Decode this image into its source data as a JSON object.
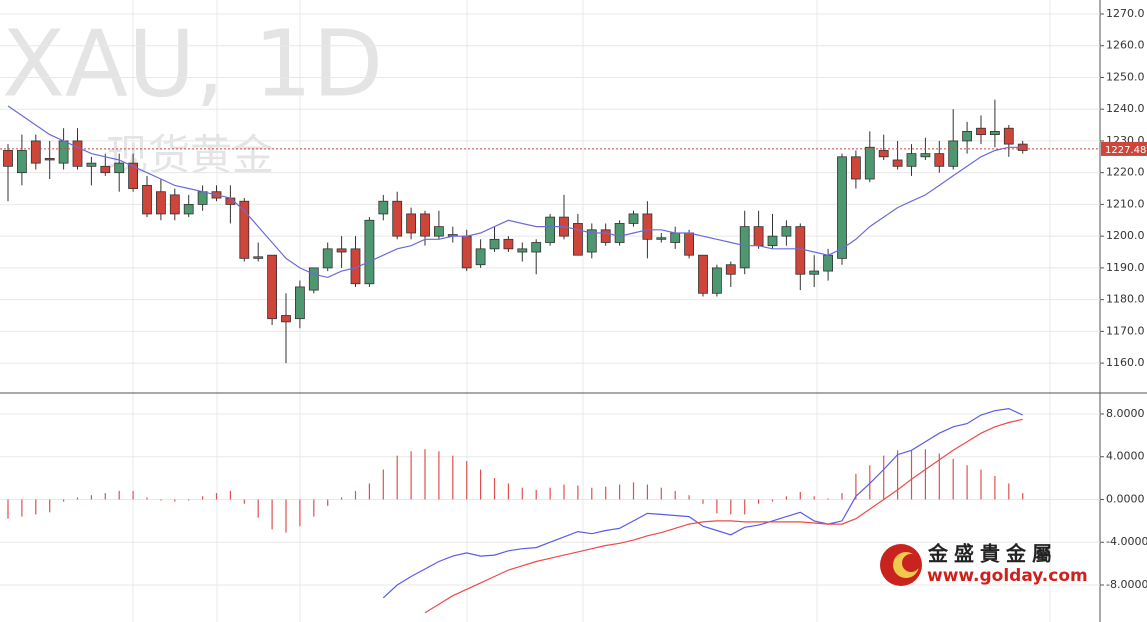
{
  "chart_data": [
    {
      "type": "candlestick",
      "title": "XAU, 1D",
      "subtitle": "现货黄金",
      "up_color": "#4d9870",
      "down_color": "#d0453a",
      "wick_color": "#333333",
      "open": [
        1227,
        1220,
        1230,
        1224.5,
        1223,
        1230,
        1222,
        1222,
        1220,
        1223,
        1216,
        1214,
        1213,
        1207,
        1210,
        1214,
        1212,
        1211,
        1193,
        1194,
        1175,
        1174,
        1183,
        1190,
        1196,
        1196,
        1185,
        1207,
        1211,
        1207,
        1207,
        1200,
        1200,
        1200,
        1191,
        1196,
        1199,
        1195,
        1195,
        1198,
        1206,
        1204,
        1195,
        1202,
        1198,
        1204,
        1207,
        1199,
        1198,
        1201,
        1194,
        1182,
        1191,
        1190,
        1203,
        1197,
        1200,
        1203,
        1188,
        1189,
        1193,
        1225,
        1218,
        1227,
        1224,
        1222,
        1225,
        1226,
        1222,
        1230,
        1234,
        1232,
        1234,
        1229
      ],
      "high": [
        1229,
        1232,
        1232,
        1230,
        1234,
        1234,
        1225,
        1226,
        1226,
        1226,
        1219,
        1218,
        1215,
        1213,
        1216,
        1216,
        1216,
        1212,
        1198,
        1194,
        1182,
        1186,
        1190,
        1198,
        1200,
        1200,
        1206,
        1213,
        1214,
        1209,
        1208,
        1208,
        1203,
        1202,
        1199,
        1203,
        1200,
        1198,
        1199,
        1207,
        1213,
        1207,
        1204,
        1204,
        1205,
        1208,
        1211,
        1201,
        1203,
        1202,
        1194,
        1191,
        1192,
        1208,
        1208,
        1207,
        1205,
        1204,
        1194,
        1196,
        1226,
        1227,
        1233,
        1232,
        1230,
        1229,
        1231,
        1230,
        1240,
        1236,
        1238,
        1243,
        1235,
        1230
      ],
      "low": [
        1211,
        1216,
        1221,
        1218,
        1221,
        1221,
        1216,
        1219,
        1214,
        1214,
        1206,
        1205,
        1205,
        1206,
        1208,
        1211,
        1204,
        1192,
        1192,
        1172,
        1160,
        1171,
        1182,
        1189,
        1190,
        1184,
        1184,
        1205,
        1199,
        1199,
        1197,
        1199,
        1198,
        1189,
        1190,
        1195,
        1195,
        1192,
        1188,
        1197,
        1199,
        1194,
        1193,
        1197,
        1197,
        1203,
        1193,
        1198,
        1196,
        1193,
        1181,
        1181,
        1184,
        1188,
        1196,
        1196,
        1197,
        1183,
        1184,
        1186,
        1191,
        1215,
        1217,
        1224,
        1221,
        1219,
        1224,
        1220,
        1221,
        1226,
        1229,
        1228,
        1225,
        1226
      ],
      "close": [
        1222,
        1227,
        1223,
        1224,
        1230,
        1222,
        1223,
        1220,
        1223,
        1215,
        1207,
        1207,
        1207,
        1210,
        1214,
        1212,
        1210,
        1193,
        1193.5,
        1174,
        1173,
        1184,
        1190,
        1196,
        1195,
        1185,
        1205,
        1211,
        1200,
        1201,
        1200,
        1203,
        1200.5,
        1190,
        1196,
        1199,
        1196,
        1196,
        1198,
        1206,
        1200,
        1194,
        1202,
        1198,
        1204,
        1207,
        1199,
        1199.5,
        1201,
        1194,
        1182,
        1190,
        1188,
        1203,
        1197,
        1200,
        1203,
        1188,
        1189,
        1194,
        1225,
        1218,
        1228,
        1225,
        1222,
        1226,
        1226,
        1222,
        1230,
        1233,
        1232,
        1233,
        1229,
        1227
      ],
      "ma": {
        "color": "#6b6bdb",
        "values": [
          1241,
          1238,
          1235,
          1232,
          1230,
          1228,
          1226,
          1225,
          1224,
          1222,
          1220,
          1218,
          1216,
          1215,
          1214,
          1213,
          1212,
          1208,
          1203,
          1198,
          1193,
          1190,
          1188,
          1187,
          1189,
          1190,
          1192,
          1194,
          1196,
          1197,
          1199,
          1199,
          1200,
          1200,
          1201,
          1203,
          1205,
          1204,
          1203,
          1203,
          1203,
          1202,
          1201,
          1201,
          1200,
          1201,
          1202,
          1202,
          1201,
          1201,
          1200,
          1199,
          1198,
          1197,
          1197,
          1196,
          1196,
          1196,
          1195,
          1194,
          1196,
          1199,
          1203,
          1206,
          1209,
          1211,
          1213,
          1216,
          1219,
          1222,
          1225,
          1227,
          1228,
          1228
        ]
      },
      "last_price": 1227.48,
      "last_price_color": "#d0453a",
      "ylim": [
        1150.9,
        1274.4
      ],
      "yticks": [
        {
          "value": 1160,
          "label": "1160.0"
        },
        {
          "value": 1170,
          "label": "1170.0"
        },
        {
          "value": 1180,
          "label": "1180.0"
        },
        {
          "value": 1190,
          "label": "1190.0"
        },
        {
          "value": 1200,
          "label": "1200.0"
        },
        {
          "value": 1210,
          "label": "1210.0"
        },
        {
          "value": 1220,
          "label": "1220.0"
        },
        {
          "value": 1230,
          "label": "1230.0"
        },
        {
          "value": 1240,
          "label": "1240.0"
        },
        {
          "value": 1250,
          "label": "1250.0"
        },
        {
          "value": 1260,
          "label": "1260.0"
        },
        {
          "value": 1270,
          "label": "1270.0"
        }
      ],
      "grid": true
    },
    {
      "type": "macd",
      "histogram": {
        "color": "#e05050",
        "values": [
          -1.8,
          -1.6,
          -1.4,
          -1.2,
          -0.2,
          0.2,
          0.4,
          0.6,
          0.8,
          0.8,
          0.2,
          -0.1,
          -0.2,
          -0.1,
          0.3,
          0.6,
          0.8,
          -0.4,
          -1.7,
          -2.8,
          -3.1,
          -2.5,
          -1.6,
          -0.6,
          0.2,
          0.8,
          1.5,
          2.8,
          4.1,
          4.5,
          4.7,
          4.5,
          4.1,
          3.6,
          2.8,
          2.0,
          1.5,
          1.1,
          0.9,
          1.1,
          1.4,
          1.3,
          1.1,
          1.2,
          1.4,
          1.6,
          1.4,
          1.1,
          0.8,
          0.4,
          -0.4,
          -1.3,
          -1.4,
          -1.4,
          -0.4,
          -0.2,
          0.3,
          0.7,
          0.3,
          0.1,
          0.6,
          2.4,
          3.2,
          4.1,
          4.6,
          4.6,
          4.7,
          4.3,
          3.8,
          3.2,
          2.8,
          2.2,
          1.5,
          0.6
        ]
      },
      "lines": [
        {
          "color": "#5b5bea",
          "values": [
            null,
            null,
            null,
            null,
            null,
            null,
            null,
            null,
            null,
            null,
            null,
            null,
            null,
            null,
            null,
            null,
            null,
            null,
            null,
            null,
            null,
            null,
            null,
            null,
            null,
            null,
            null,
            -9.2,
            -8.0,
            -7.2,
            -6.5,
            -5.8,
            -5.3,
            -5.0,
            -5.3,
            -5.2,
            -4.8,
            -4.6,
            -4.5,
            -4.0,
            -3.5,
            -3.0,
            -3.2,
            -2.9,
            -2.7,
            -2.0,
            -1.3,
            -1.4,
            -1.5,
            -1.6,
            -2.5,
            -2.9,
            -3.3,
            -2.6,
            -2.4,
            -2.0,
            -1.6,
            -1.2,
            -2.0,
            -2.3,
            -2.0,
            0.3,
            1.5,
            2.8,
            4.2,
            4.6,
            5.4,
            6.2,
            6.8,
            7.1,
            7.9,
            8.3,
            8.5,
            7.9
          ]
        },
        {
          "color": "#ee4a4a",
          "values": [
            null,
            null,
            null,
            null,
            null,
            null,
            null,
            null,
            null,
            null,
            null,
            null,
            null,
            null,
            null,
            null,
            null,
            null,
            null,
            null,
            null,
            null,
            null,
            null,
            null,
            null,
            null,
            null,
            null,
            null,
            -10.6,
            -9.8,
            -9.0,
            -8.4,
            -7.8,
            -7.2,
            -6.6,
            -6.2,
            -5.8,
            -5.5,
            -5.2,
            -4.9,
            -4.6,
            -4.3,
            -4.1,
            -3.8,
            -3.4,
            -3.1,
            -2.7,
            -2.3,
            -2.1,
            -2.0,
            -2.0,
            -2.1,
            -2.1,
            -2.1,
            -2.1,
            -2.1,
            -2.2,
            -2.3,
            -2.3,
            -1.8,
            -0.9,
            0,
            0.9,
            1.9,
            2.8,
            3.7,
            4.6,
            5.4,
            6.2,
            6.8,
            7.2,
            7.5
          ]
        }
      ],
      "ylim": [
        -11.46,
        9.96
      ],
      "yticks": [
        {
          "value": -8,
          "label": "-8.0000"
        },
        {
          "value": -4,
          "label": "-4.0000"
        },
        {
          "value": 0,
          "label": "0.0000"
        },
        {
          "value": 4,
          "label": "4.0000"
        },
        {
          "value": 8,
          "label": "8.0000"
        }
      ],
      "grid": true
    }
  ],
  "logo": {
    "name": "金盛貴金屬",
    "url": "www.golday.com"
  }
}
